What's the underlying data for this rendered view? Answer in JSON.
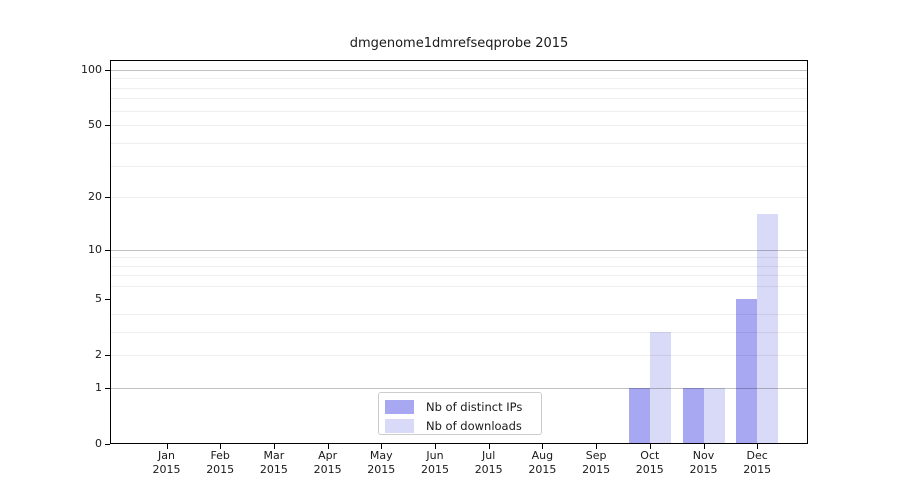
{
  "chart_data": {
    "type": "bar",
    "title": "dmgenome1dmrefseqprobe 2015",
    "categories": [
      "Jan",
      "Feb",
      "Mar",
      "Apr",
      "May",
      "Jun",
      "Jul",
      "Aug",
      "Sep",
      "Oct",
      "Nov",
      "Dec"
    ],
    "year_label": "2015",
    "series": [
      {
        "name": "Nb of distinct IPs",
        "color": "#a8a8f2",
        "values": [
          0,
          0,
          0,
          0,
          0,
          0,
          0,
          0,
          0,
          1,
          1,
          5
        ]
      },
      {
        "name": "Nb of downloads",
        "color": "#d9d9f8",
        "values": [
          0,
          0,
          0,
          0,
          0,
          0,
          0,
          0,
          0,
          3,
          1,
          16
        ]
      }
    ],
    "y_scale": "log10(value+1)",
    "y_ticks": [
      0,
      1,
      2,
      5,
      10,
      20,
      50,
      100
    ],
    "y_major_gridlines": [
      1,
      10,
      100
    ],
    "y_minor_gridlines": [
      2,
      3,
      4,
      6,
      7,
      8,
      9,
      20,
      30,
      40,
      50,
      60,
      70,
      80,
      90
    ],
    "ylim": [
      0,
      113
    ],
    "xlabel": "",
    "ylabel": "",
    "grid": true,
    "legend_position": "inside-bottom-center",
    "colors": {
      "text": "#1a1a1a",
      "frame": "#000000",
      "grid_major": "rgba(0,0,0,0.24)",
      "grid_minor": "rgba(0,0,0,0.065)",
      "background": "#ffffff"
    }
  }
}
